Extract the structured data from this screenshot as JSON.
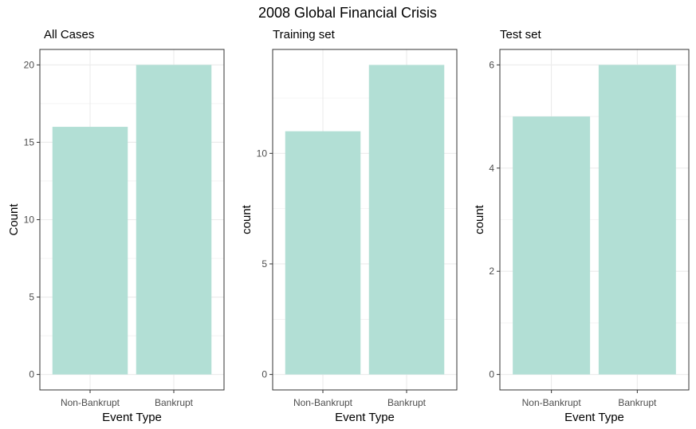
{
  "chart_data": {
    "title": "2008 Global Financial Crisis",
    "type": "bar",
    "bar_color": "#b2dfd5",
    "panel_border_color": "#333333",
    "grid_color": "#ebebeb",
    "grid": true,
    "panels": [
      {
        "subtitle": "All Cases",
        "type": "bar",
        "categories": [
          "Non-Bankrupt",
          "Bankrupt"
        ],
        "values": [
          16,
          20
        ],
        "xlabel": "Event Type",
        "ylabel": "Count",
        "ylim": [
          -1,
          21
        ],
        "yticks": [
          0,
          5,
          10,
          15,
          20
        ]
      },
      {
        "subtitle": "Training set",
        "type": "bar",
        "categories": [
          "Non-Bankrupt",
          "Bankrupt"
        ],
        "values": [
          11,
          14
        ],
        "xlabel": "Event Type",
        "ylabel": "count",
        "ylim": [
          -0.7,
          14.7
        ],
        "yticks": [
          0,
          5,
          10
        ]
      },
      {
        "subtitle": "Test set",
        "type": "bar",
        "categories": [
          "Non-Bankrupt",
          "Bankrupt"
        ],
        "values": [
          5,
          6
        ],
        "xlabel": "Event Type",
        "ylabel": "count",
        "ylim": [
          -0.3,
          6.3
        ],
        "yticks": [
          0,
          2,
          4,
          6
        ]
      }
    ]
  }
}
